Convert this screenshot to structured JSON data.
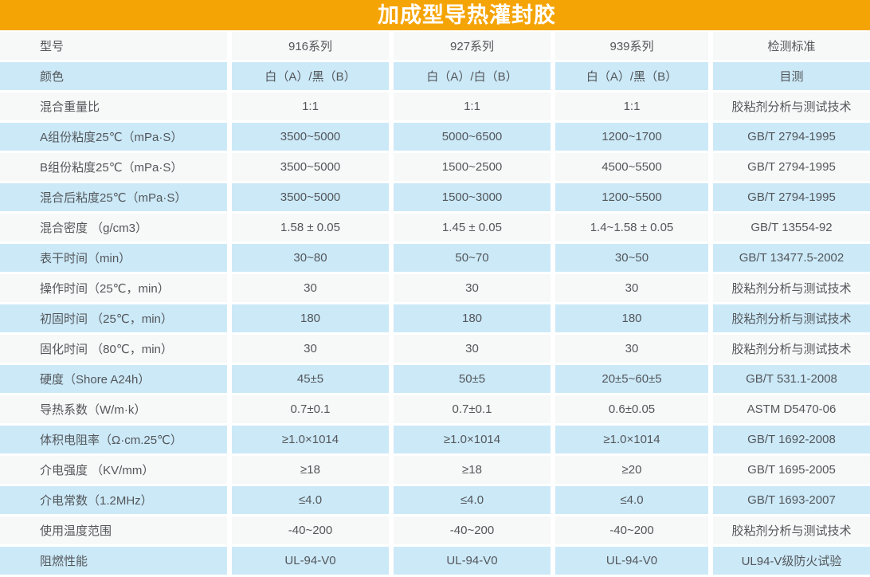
{
  "title": "加成型导热灌封胶",
  "colors": {
    "banner": "#F5A405",
    "row_main": "#F7F8F8",
    "row_alt": "#CCE9F8",
    "text": "#53575A",
    "title_text": "#FFFFFF"
  },
  "table": {
    "columns": [
      "型号",
      "916系列",
      "927系列",
      "939系列",
      "检测标准"
    ],
    "rows": [
      [
        "颜色",
        "白（A）/黑（B）",
        "白（A）/白（B）",
        "白（A）/黑（B）",
        "目测"
      ],
      [
        "混合重量比",
        "1:1",
        "1:1",
        "1:1",
        "胶粘剂分析与测试技术"
      ],
      [
        "A组份粘度25℃（mPa·S）",
        "3500~5000",
        "5000~6500",
        "1200~1700",
        "GB/T 2794-1995"
      ],
      [
        "B组份粘度25℃（mPa·S）",
        "3500~5000",
        "1500~2500",
        "4500~5500",
        "GB/T 2794-1995"
      ],
      [
        "混合后粘度25℃（mPa·S）",
        "3500~5000",
        "1500~3000",
        "1200~5500",
        "GB/T 2794-1995"
      ],
      [
        "混合密度 （g/cm3）",
        "1.58 ± 0.05",
        "1.45 ± 0.05",
        "1.4~1.58 ± 0.05",
        "GB/T 13554-92"
      ],
      [
        "表干时间（min）",
        "30~80",
        "50~70",
        "30~50",
        "GB/T 13477.5-2002"
      ],
      [
        "操作时间（25℃，min）",
        "30",
        "30",
        "30",
        "胶粘剂分析与测试技术"
      ],
      [
        "初固时间 （25℃，min）",
        "180",
        "180",
        "180",
        "胶粘剂分析与测试技术"
      ],
      [
        "固化时间 （80℃，min）",
        "30",
        "30",
        "30",
        "胶粘剂分析与测试技术"
      ],
      [
        "硬度（Shore A24h）",
        "45±5",
        "50±5",
        "20±5~60±5",
        "GB/T 531.1-2008"
      ],
      [
        "导热系数（W/m·k）",
        "0.7±0.1",
        "0.7±0.1",
        "0.6±0.05",
        "ASTM D5470-06"
      ],
      [
        "体积电阻率（Ω·cm.25℃）",
        "≥1.0×1014",
        "≥1.0×1014",
        "≥1.0×1014",
        "GB/T 1692-2008"
      ],
      [
        "介电强度 （KV/mm）",
        "≥18",
        "≥18",
        "≥20",
        "GB/T 1695-2005"
      ],
      [
        "介电常数（1.2MHz）",
        "≤4.0",
        "≤4.0",
        "≤4.0",
        "GB/T 1693-2007"
      ],
      [
        "使用温度范围",
        "-40~200",
        "-40~200",
        "-40~200",
        "胶粘剂分析与测试技术"
      ],
      [
        "阻燃性能",
        "UL-94-V0",
        "UL-94-V0",
        "UL-94-V0",
        "UL94-V级防火试验"
      ]
    ]
  }
}
